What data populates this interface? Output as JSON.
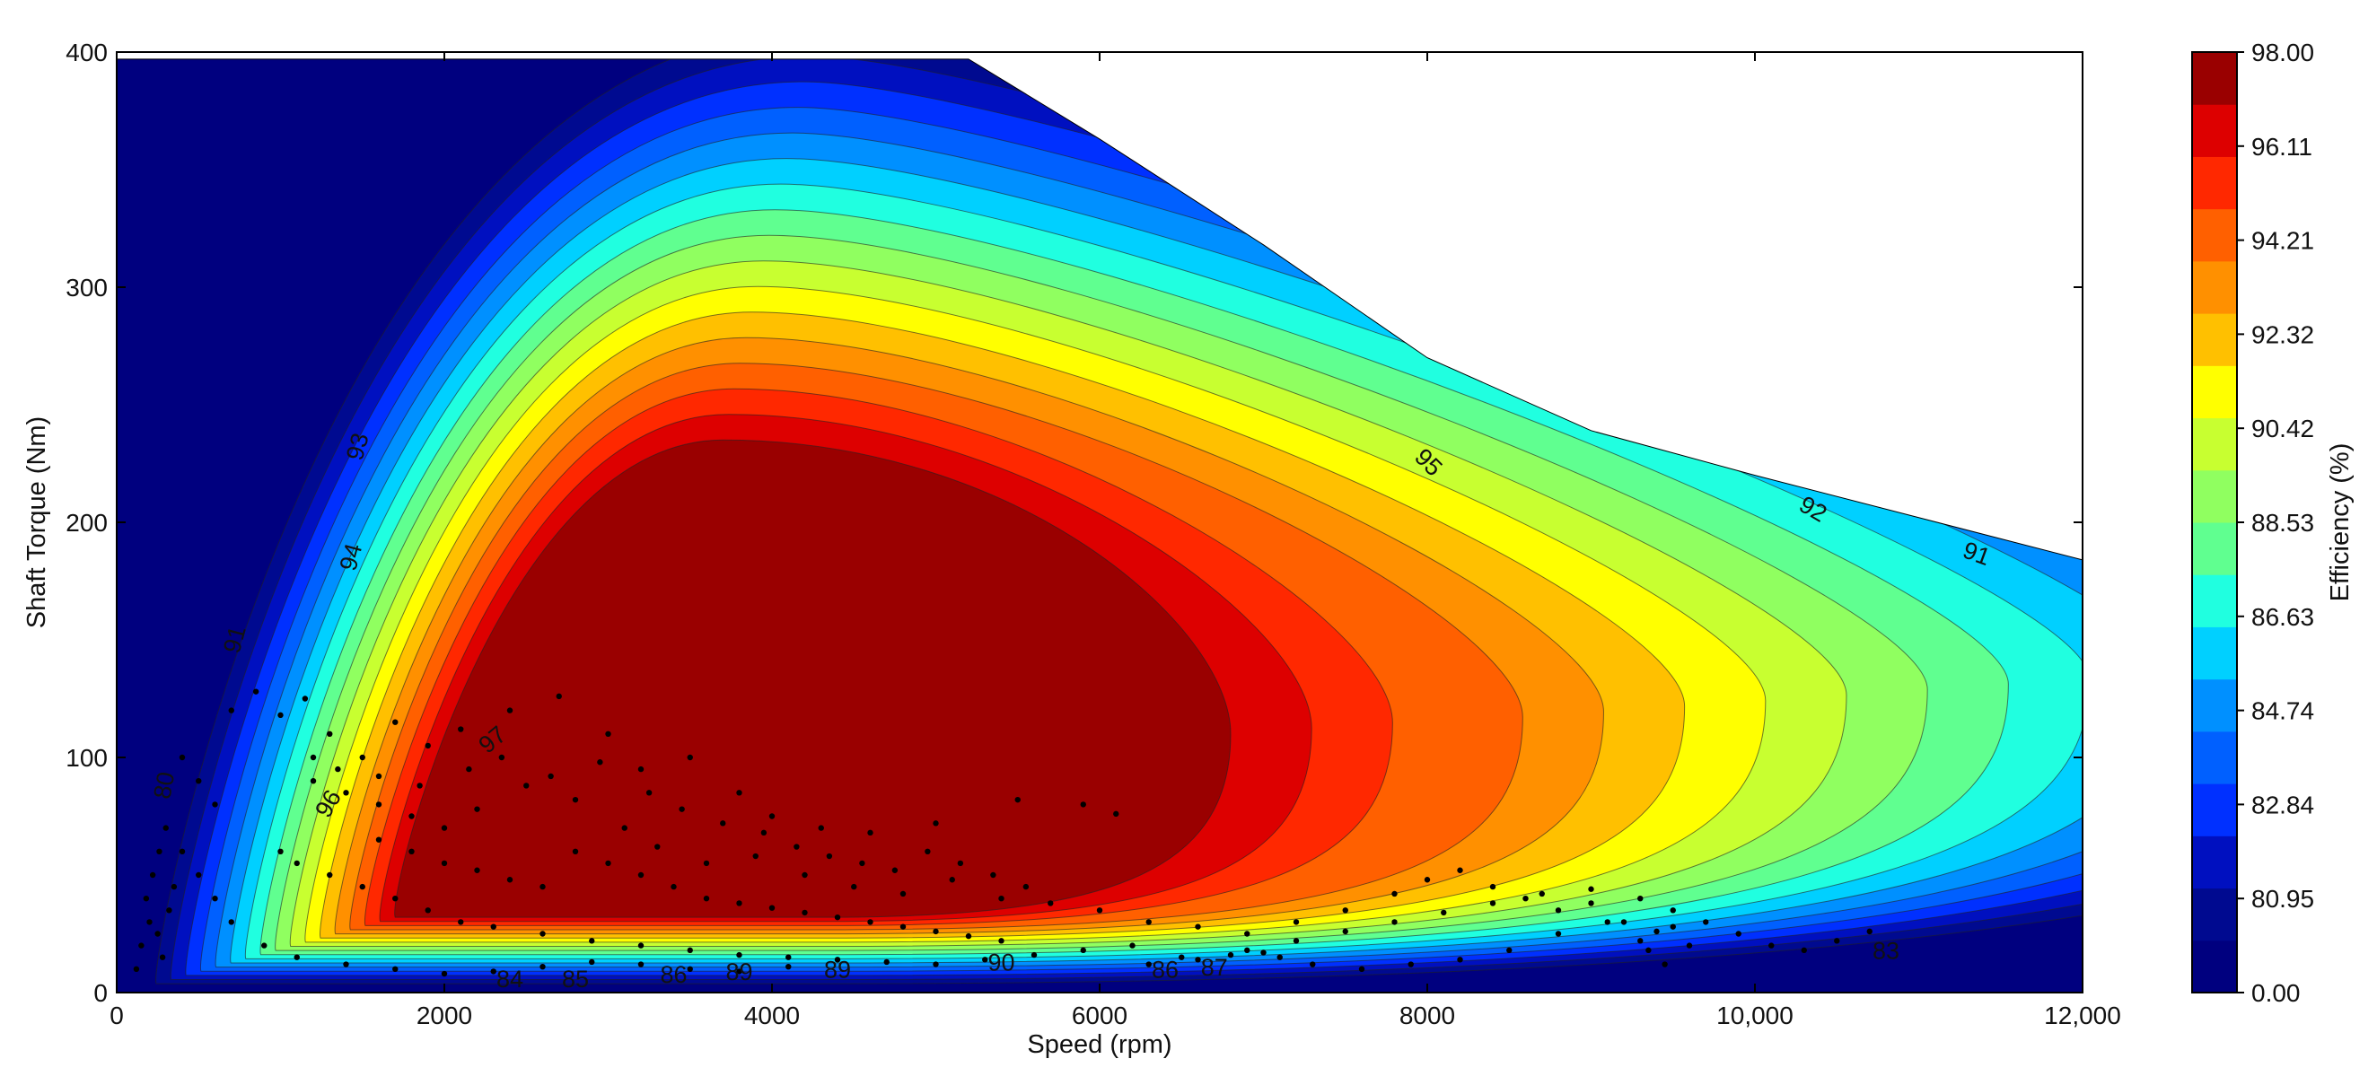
{
  "chart_data": {
    "type": "heatmap",
    "subtype": "filled-contour efficiency map with scatter overlay",
    "xlabel": "Speed  (rpm)",
    "ylabel": "Shaft Torque  (Nm)",
    "colorbar_label": "Efficiency (%)",
    "xlim": [
      0,
      12000
    ],
    "ylim": [
      0,
      400
    ],
    "x_ticks": [
      {
        "value": 0,
        "label": "0"
      },
      {
        "value": 2000,
        "label": "2000"
      },
      {
        "value": 4000,
        "label": "4000"
      },
      {
        "value": 6000,
        "label": "6000"
      },
      {
        "value": 8000,
        "label": "8000"
      },
      {
        "value": 10000,
        "label": "10,000"
      },
      {
        "value": 12000,
        "label": "12,000"
      }
    ],
    "y_ticks": [
      {
        "value": 0,
        "label": "0"
      },
      {
        "value": 100,
        "label": "100"
      },
      {
        "value": 200,
        "label": "200"
      },
      {
        "value": 300,
        "label": "300"
      },
      {
        "value": 400,
        "label": "400"
      }
    ],
    "colorbar": {
      "levels": [
        {
          "value": 0.0,
          "label": "0.00",
          "color": "#00007f"
        },
        {
          "value": 80.95,
          "label": "80.95",
          "color": "#000fa0"
        },
        {
          "value": 82.84,
          "label": "82.84",
          "color": "#0022ff"
        },
        {
          "value": 84.74,
          "label": "84.74",
          "color": "#0080ff"
        },
        {
          "value": 86.63,
          "label": "86.63",
          "color": "#00e0f0"
        },
        {
          "value": 88.53,
          "label": "88.53",
          "color": "#60ff90"
        },
        {
          "value": 90.42,
          "label": "90.42",
          "color": "#c8ff30"
        },
        {
          "value": 92.32,
          "label": "92.32",
          "color": "#ffe000"
        },
        {
          "value": 94.21,
          "label": "94.21",
          "color": "#ff7800"
        },
        {
          "value": 96.11,
          "label": "96.11",
          "color": "#ff2000"
        },
        {
          "value": 98.0,
          "label": "98.00",
          "color": "#9a0000"
        }
      ],
      "band_colors": [
        "#00007f",
        "#000a90",
        "#0010c0",
        "#0030ff",
        "#0060ff",
        "#0090ff",
        "#00d0ff",
        "#20ffe0",
        "#60ff90",
        "#90ff60",
        "#c8ff30",
        "#ffff00",
        "#ffc000",
        "#ff9000",
        "#ff6000",
        "#ff2800",
        "#dd0000",
        "#9a0000"
      ]
    },
    "peak_efficiency_region": {
      "label": "97",
      "center": [
        4200,
        150
      ]
    },
    "contour_labels": [
      {
        "text": "93",
        "x": 1480,
        "y": 232,
        "angle": -75
      },
      {
        "text": "94",
        "x": 1440,
        "y": 185,
        "angle": -75
      },
      {
        "text": "91",
        "x": 730,
        "y": 150,
        "angle": -75
      },
      {
        "text": "97",
        "x": 2300,
        "y": 107,
        "angle": -40
      },
      {
        "text": "96",
        "x": 1300,
        "y": 80,
        "angle": -60
      },
      {
        "text": "80",
        "x": 300,
        "y": 88,
        "angle": -80
      },
      {
        "text": "95",
        "x": 8000,
        "y": 225,
        "angle": 45
      },
      {
        "text": "92",
        "x": 10350,
        "y": 205,
        "angle": 30
      },
      {
        "text": "91",
        "x": 11350,
        "y": 186,
        "angle": 20
      },
      {
        "text": "83",
        "x": 10800,
        "y": 17,
        "angle": 0
      },
      {
        "text": "85",
        "x": 2800,
        "y": 5,
        "angle": 0
      },
      {
        "text": "84",
        "x": 2400,
        "y": 5,
        "angle": 0
      },
      {
        "text": "86",
        "x": 3400,
        "y": 7,
        "angle": 0
      },
      {
        "text": "89",
        "x": 3800,
        "y": 8,
        "angle": 0
      },
      {
        "text": "89",
        "x": 4400,
        "y": 9,
        "angle": 0
      },
      {
        "text": "90",
        "x": 5400,
        "y": 12,
        "angle": 0
      },
      {
        "text": "86",
        "x": 6400,
        "y": 9,
        "angle": 0
      },
      {
        "text": "87",
        "x": 6700,
        "y": 10,
        "angle": 0
      }
    ],
    "envelope": [
      [
        0,
        397
      ],
      [
        5200,
        397
      ],
      [
        6000,
        363
      ],
      [
        7000,
        318
      ],
      [
        8000,
        270
      ],
      [
        9000,
        239
      ],
      [
        10000,
        220
      ],
      [
        11000,
        202
      ],
      [
        12000,
        184
      ]
    ],
    "scatter_points": [
      [
        700,
        120
      ],
      [
        850,
        128
      ],
      [
        1000,
        118
      ],
      [
        1150,
        125
      ],
      [
        1300,
        110
      ],
      [
        1500,
        100
      ],
      [
        1700,
        115
      ],
      [
        1900,
        105
      ],
      [
        2100,
        112
      ],
      [
        2400,
        120
      ],
      [
        2700,
        126
      ],
      [
        3000,
        110
      ],
      [
        3200,
        95
      ],
      [
        3500,
        100
      ],
      [
        3800,
        85
      ],
      [
        4000,
        75
      ],
      [
        4300,
        70
      ],
      [
        4600,
        68
      ],
      [
        5000,
        72
      ],
      [
        5500,
        82
      ],
      [
        5900,
        80
      ],
      [
        6100,
        76
      ],
      [
        1200,
        90
      ],
      [
        1400,
        85
      ],
      [
        1600,
        80
      ],
      [
        1800,
        75
      ],
      [
        2000,
        70
      ],
      [
        2200,
        78
      ],
      [
        2500,
        88
      ],
      [
        2800,
        82
      ],
      [
        3100,
        70
      ],
      [
        3300,
        62
      ],
      [
        3600,
        55
      ],
      [
        3900,
        58
      ],
      [
        4200,
        50
      ],
      [
        4500,
        45
      ],
      [
        4800,
        42
      ],
      [
        5100,
        48
      ],
      [
        5400,
        40
      ],
      [
        5700,
        38
      ],
      [
        6000,
        35
      ],
      [
        6300,
        30
      ],
      [
        6600,
        28
      ],
      [
        6900,
        25
      ],
      [
        7200,
        30
      ],
      [
        7500,
        35
      ],
      [
        7800,
        42
      ],
      [
        8000,
        48
      ],
      [
        8200,
        52
      ],
      [
        8400,
        45
      ],
      [
        8600,
        40
      ],
      [
        8800,
        35
      ],
      [
        9000,
        38
      ],
      [
        9200,
        30
      ],
      [
        9400,
        26
      ],
      [
        9600,
        20
      ],
      [
        1000,
        60
      ],
      [
        1100,
        55
      ],
      [
        1300,
        50
      ],
      [
        1500,
        45
      ],
      [
        1700,
        40
      ],
      [
        1900,
        35
      ],
      [
        2100,
        30
      ],
      [
        2300,
        28
      ],
      [
        2600,
        25
      ],
      [
        2900,
        22
      ],
      [
        3200,
        20
      ],
      [
        3500,
        18
      ],
      [
        3800,
        16
      ],
      [
        4100,
        15
      ],
      [
        4400,
        14
      ],
      [
        4700,
        13
      ],
      [
        5000,
        12
      ],
      [
        5300,
        14
      ],
      [
        5600,
        16
      ],
      [
        5900,
        18
      ],
      [
        6200,
        20
      ],
      [
        6500,
        15
      ],
      [
        6800,
        16
      ],
      [
        7000,
        17
      ],
      [
        7100,
        15
      ],
      [
        7300,
        12
      ],
      [
        7600,
        10
      ],
      [
        7900,
        12
      ],
      [
        8200,
        14
      ],
      [
        8500,
        18
      ],
      [
        8800,
        25
      ],
      [
        9100,
        30
      ],
      [
        9300,
        22
      ],
      [
        9500,
        28
      ],
      [
        400,
        100
      ],
      [
        500,
        90
      ],
      [
        600,
        80
      ],
      [
        300,
        70
      ],
      [
        400,
        60
      ],
      [
        500,
        50
      ],
      [
        600,
        40
      ],
      [
        700,
        30
      ],
      [
        900,
        20
      ],
      [
        1100,
        15
      ],
      [
        1400,
        12
      ],
      [
        1700,
        10
      ],
      [
        2000,
        8
      ],
      [
        2300,
        9
      ],
      [
        2600,
        11
      ],
      [
        2900,
        13
      ],
      [
        3200,
        12
      ],
      [
        3500,
        10
      ],
      [
        3800,
        9
      ],
      [
        4100,
        11
      ],
      [
        1600,
        65
      ],
      [
        1800,
        60
      ],
      [
        2000,
        55
      ],
      [
        2200,
        52
      ],
      [
        2400,
        48
      ],
      [
        2600,
        45
      ],
      [
        2800,
        60
      ],
      [
        3000,
        55
      ],
      [
        3200,
        50
      ],
      [
        3400,
        45
      ],
      [
        3600,
        40
      ],
      [
        3800,
        38
      ],
      [
        4000,
        36
      ],
      [
        4200,
        34
      ],
      [
        4400,
        32
      ],
      [
        4600,
        30
      ],
      [
        4800,
        28
      ],
      [
        5000,
        26
      ],
      [
        5200,
        24
      ],
      [
        5400,
        22
      ],
      [
        1200,
        100
      ],
      [
        1350,
        95
      ],
      [
        1600,
        92
      ],
      [
        1850,
        88
      ],
      [
        2150,
        95
      ],
      [
        2350,
        100
      ],
      [
        2650,
        92
      ],
      [
        2950,
        98
      ],
      [
        3250,
        85
      ],
      [
        3450,
        78
      ],
      [
        3700,
        72
      ],
      [
        3950,
        68
      ],
      [
        4150,
        62
      ],
      [
        4350,
        58
      ],
      [
        4550,
        55
      ],
      [
        4750,
        52
      ],
      [
        4950,
        60
      ],
      [
        5150,
        55
      ],
      [
        5350,
        50
      ],
      [
        5550,
        45
      ],
      [
        6300,
        12
      ],
      [
        6600,
        14
      ],
      [
        6900,
        18
      ],
      [
        7200,
        22
      ],
      [
        7500,
        26
      ],
      [
        7800,
        30
      ],
      [
        8100,
        34
      ],
      [
        8400,
        38
      ],
      [
        8700,
        42
      ],
      [
        9000,
        44
      ],
      [
        9300,
        40
      ],
      [
        9500,
        35
      ],
      [
        9700,
        30
      ],
      [
        9900,
        25
      ],
      [
        10100,
        20
      ],
      [
        10300,
        18
      ],
      [
        10500,
        22
      ],
      [
        10700,
        26
      ],
      [
        9350,
        18
      ],
      [
        9450,
        12
      ],
      [
        200,
        30
      ],
      [
        250,
        25
      ],
      [
        180,
        40
      ],
      [
        220,
        50
      ],
      [
        150,
        20
      ],
      [
        280,
        15
      ],
      [
        320,
        35
      ],
      [
        120,
        10
      ],
      [
        350,
        45
      ],
      [
        260,
        60
      ]
    ]
  }
}
